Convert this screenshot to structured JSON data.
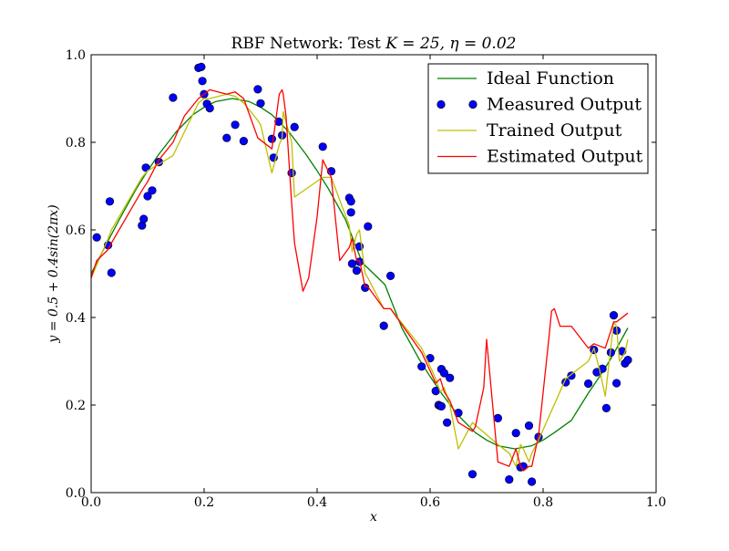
{
  "chart_data": {
    "type": "line",
    "title": "RBF Network: Test K = 25, η = 0.02",
    "title_parts": {
      "prefix": "RBF Network: Test ",
      "math": "K = 25, η = 0.02"
    },
    "xlabel": "x",
    "ylabel": "y = 0.5 + 0.4sin(2πx)",
    "xlim": [
      0.0,
      1.0
    ],
    "ylim": [
      0.0,
      1.0
    ],
    "xticks": [
      "0.0",
      "0.2",
      "0.4",
      "0.6",
      "0.8",
      "1.0"
    ],
    "yticks": [
      "0.0",
      "0.2",
      "0.4",
      "0.6",
      "0.8",
      "1.0"
    ],
    "grid": false,
    "legend_position": "top-right",
    "series": [
      {
        "name": "Ideal Function",
        "kind": "line",
        "color": "#008000",
        "x": [
          0.0,
          0.01,
          0.03,
          0.05,
          0.08,
          0.1,
          0.12,
          0.15,
          0.18,
          0.2,
          0.22,
          0.25,
          0.28,
          0.3,
          0.32,
          0.35,
          0.38,
          0.4,
          0.42,
          0.45,
          0.48,
          0.5,
          0.52,
          0.55,
          0.58,
          0.6,
          0.62,
          0.65,
          0.68,
          0.7,
          0.72,
          0.75,
          0.78,
          0.8,
          0.82,
          0.85,
          0.88,
          0.9,
          0.92,
          0.95
        ],
        "y": [
          0.5,
          0.525,
          0.575,
          0.624,
          0.694,
          0.735,
          0.773,
          0.823,
          0.863,
          0.88,
          0.893,
          0.9,
          0.893,
          0.88,
          0.863,
          0.824,
          0.773,
          0.735,
          0.694,
          0.624,
          0.525,
          0.5,
          0.475,
          0.376,
          0.306,
          0.265,
          0.227,
          0.176,
          0.137,
          0.12,
          0.107,
          0.1,
          0.107,
          0.12,
          0.137,
          0.165,
          0.227,
          0.265,
          0.306,
          0.376
        ]
      },
      {
        "name": "Measured Output",
        "kind": "scatter",
        "color": "#0000ff",
        "x": [
          0.01,
          0.03,
          0.033,
          0.036,
          0.09,
          0.093,
          0.097,
          0.1,
          0.108,
          0.12,
          0.145,
          0.19,
          0.195,
          0.197,
          0.2,
          0.205,
          0.21,
          0.24,
          0.255,
          0.27,
          0.295,
          0.3,
          0.32,
          0.323,
          0.332,
          0.338,
          0.355,
          0.36,
          0.41,
          0.425,
          0.457,
          0.46,
          0.46,
          0.462,
          0.47,
          0.475,
          0.475,
          0.485,
          0.49,
          0.518,
          0.53,
          0.585,
          0.6,
          0.61,
          0.615,
          0.618,
          0.62,
          0.62,
          0.625,
          0.63,
          0.635,
          0.65,
          0.675,
          0.72,
          0.74,
          0.752,
          0.76,
          0.765,
          0.775,
          0.78,
          0.792,
          0.84,
          0.85,
          0.88,
          0.89,
          0.895,
          0.905,
          0.912,
          0.92,
          0.925,
          0.93,
          0.93,
          0.94,
          0.945,
          0.95
        ],
        "y": [
          0.583,
          0.565,
          0.665,
          0.502,
          0.61,
          0.625,
          0.742,
          0.677,
          0.69,
          0.755,
          0.902,
          0.97,
          0.972,
          0.94,
          0.91,
          0.888,
          0.878,
          0.81,
          0.84,
          0.803,
          0.921,
          0.889,
          0.808,
          0.765,
          0.847,
          0.816,
          0.73,
          0.835,
          0.79,
          0.734,
          0.673,
          0.665,
          0.64,
          0.523,
          0.507,
          0.562,
          0.527,
          0.468,
          0.608,
          0.381,
          0.495,
          0.288,
          0.307,
          0.232,
          0.2,
          0.198,
          0.197,
          0.282,
          0.273,
          0.16,
          0.262,
          0.182,
          0.042,
          0.17,
          0.03,
          0.136,
          0.058,
          0.06,
          0.153,
          0.025,
          0.127,
          0.252,
          0.267,
          0.249,
          0.326,
          0.275,
          0.283,
          0.193,
          0.32,
          0.405,
          0.37,
          0.25,
          0.323,
          0.295,
          0.303
        ]
      },
      {
        "name": "Trained Output",
        "kind": "line",
        "color": "#bfbf00",
        "x": [
          0.0,
          0.01,
          0.03,
          0.036,
          0.09,
          0.1,
          0.12,
          0.145,
          0.19,
          0.2,
          0.21,
          0.24,
          0.255,
          0.27,
          0.295,
          0.3,
          0.32,
          0.333,
          0.338,
          0.34,
          0.355,
          0.36,
          0.41,
          0.425,
          0.457,
          0.462,
          0.47,
          0.475,
          0.485,
          0.49,
          0.518,
          0.53,
          0.585,
          0.61,
          0.618,
          0.625,
          0.635,
          0.65,
          0.675,
          0.72,
          0.74,
          0.752,
          0.76,
          0.765,
          0.775,
          0.78,
          0.792,
          0.84,
          0.85,
          0.88,
          0.89,
          0.9,
          0.91,
          0.925,
          0.93,
          0.935,
          0.945,
          0.95
        ],
        "y": [
          0.49,
          0.52,
          0.58,
          0.6,
          0.72,
          0.735,
          0.75,
          0.77,
          0.89,
          0.9,
          0.9,
          0.91,
          0.905,
          0.89,
          0.85,
          0.84,
          0.73,
          0.795,
          0.81,
          0.87,
          0.8,
          0.675,
          0.72,
          0.72,
          0.61,
          0.55,
          0.59,
          0.6,
          0.5,
          0.49,
          0.42,
          0.42,
          0.33,
          0.26,
          0.23,
          0.24,
          0.2,
          0.1,
          0.16,
          0.11,
          0.09,
          0.06,
          0.11,
          0.1,
          0.07,
          0.09,
          0.12,
          0.26,
          0.27,
          0.3,
          0.33,
          0.28,
          0.22,
          0.39,
          0.38,
          0.3,
          0.32,
          0.35
        ]
      },
      {
        "name": "Estimated Output",
        "kind": "line",
        "color": "#ff0000",
        "x": [
          0.0,
          0.01,
          0.03,
          0.036,
          0.09,
          0.1,
          0.12,
          0.145,
          0.165,
          0.19,
          0.2,
          0.21,
          0.24,
          0.255,
          0.27,
          0.295,
          0.32,
          0.333,
          0.338,
          0.34,
          0.345,
          0.355,
          0.36,
          0.375,
          0.385,
          0.4,
          0.41,
          0.425,
          0.44,
          0.457,
          0.462,
          0.47,
          0.475,
          0.485,
          0.49,
          0.518,
          0.53,
          0.585,
          0.61,
          0.618,
          0.625,
          0.635,
          0.65,
          0.675,
          0.68,
          0.695,
          0.7,
          0.72,
          0.74,
          0.752,
          0.76,
          0.765,
          0.775,
          0.78,
          0.792,
          0.81,
          0.815,
          0.82,
          0.83,
          0.85,
          0.88,
          0.89,
          0.91,
          0.925,
          0.93,
          0.95
        ],
        "y": [
          0.49,
          0.53,
          0.555,
          0.57,
          0.69,
          0.71,
          0.76,
          0.8,
          0.86,
          0.9,
          0.91,
          0.92,
          0.91,
          0.915,
          0.9,
          0.81,
          0.785,
          0.91,
          0.92,
          0.91,
          0.86,
          0.66,
          0.57,
          0.46,
          0.49,
          0.63,
          0.76,
          0.72,
          0.53,
          0.56,
          0.58,
          0.53,
          0.53,
          0.47,
          0.47,
          0.42,
          0.42,
          0.32,
          0.25,
          0.26,
          0.23,
          0.21,
          0.16,
          0.14,
          0.15,
          0.24,
          0.35,
          0.07,
          0.06,
          0.1,
          0.06,
          0.05,
          0.06,
          0.06,
          0.13,
          0.35,
          0.415,
          0.42,
          0.38,
          0.38,
          0.33,
          0.34,
          0.33,
          0.39,
          0.39,
          0.41
        ]
      }
    ]
  }
}
